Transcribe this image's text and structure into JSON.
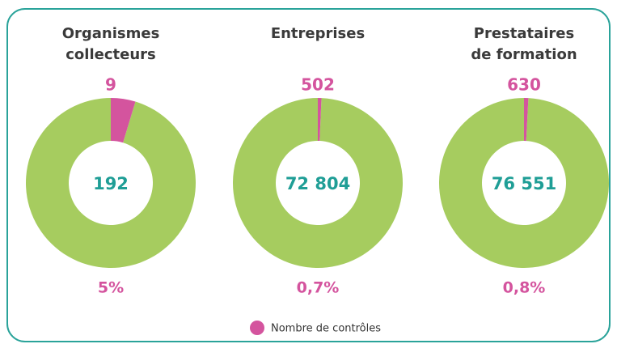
{
  "chart_data": [
    {
      "type": "pie",
      "title": [
        "Organismes",
        "collecteurs"
      ],
      "controls": 9,
      "total": 192,
      "share": {
        "value": 5,
        "label": "5%"
      },
      "color": "#d4549e",
      "rest_color": "#a6cc5f"
    },
    {
      "type": "pie",
      "title": [
        "Entreprises"
      ],
      "controls": 502,
      "total": {
        "value": 72804,
        "label": "72 804"
      },
      "share": {
        "value": 0.7,
        "label": "0,7%"
      },
      "color": "#d4549e",
      "rest_color": "#a6cc5f"
    },
    {
      "type": "pie",
      "title": [
        "Prestataires",
        "de formation"
      ],
      "controls": 630,
      "total": {
        "value": 76551,
        "label": "76 551"
      },
      "share": {
        "value": 0.8,
        "label": "0,8%"
      },
      "color": "#d4549e",
      "rest_color": "#a6cc5f"
    }
  ],
  "legend": {
    "label": "Nombre de contrôles",
    "color": "#d4549e"
  }
}
